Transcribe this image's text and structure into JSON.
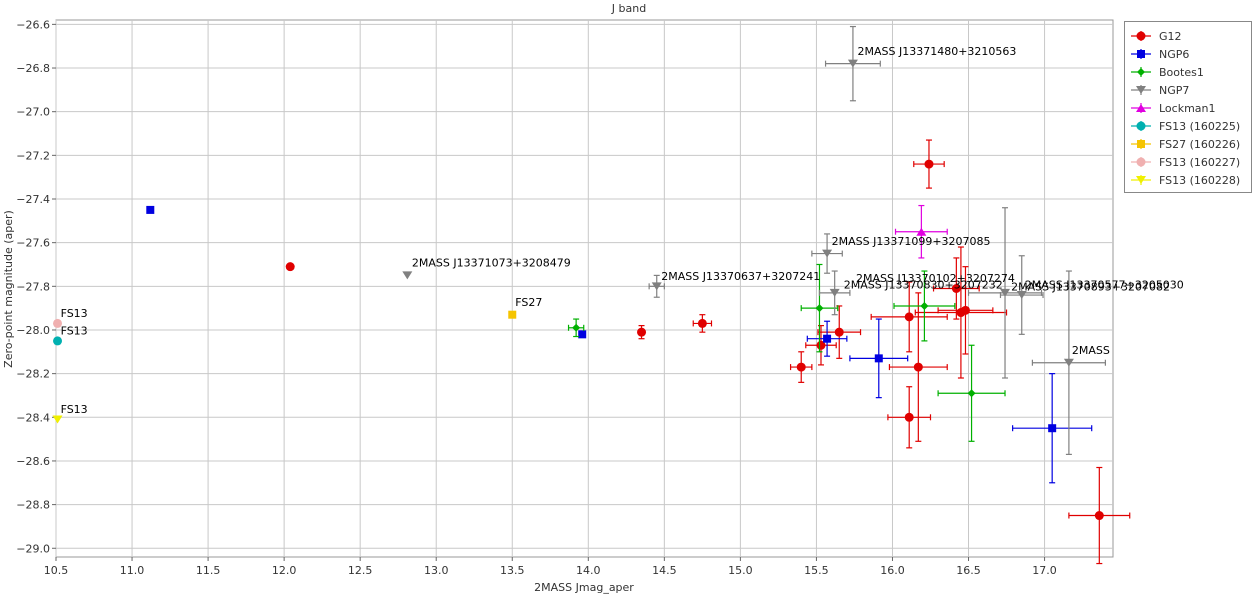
{
  "chart_data": {
    "type": "scatter",
    "title": "J band",
    "xlabel": "2MASS Jmag_aper",
    "ylabel": "Zero-point magnitude (aper)",
    "xlim": [
      10.5,
      17.45
    ],
    "ylim": [
      -29.04,
      -26.58
    ],
    "y_inverted": true,
    "grid": true,
    "legend_position": "top-right outside",
    "x_ticks": [
      10.5,
      11.0,
      11.5,
      12.0,
      12.5,
      13.0,
      13.5,
      14.0,
      14.5,
      15.0,
      15.5,
      16.0,
      16.5,
      17.0
    ],
    "x_tick_labels": [
      "10.5",
      "11.0",
      "11.5",
      "12.0",
      "12.5",
      "13.0",
      "13.5",
      "14.0",
      "14.5",
      "15.0",
      "15.5",
      "16.0",
      "16.5",
      "17.0"
    ],
    "y_ticks": [
      -26.6,
      -26.8,
      -27.0,
      -27.2,
      -27.4,
      -27.6,
      -27.8,
      -28.0,
      -28.2,
      -28.4,
      -28.6,
      -28.8,
      -29.0
    ],
    "y_tick_labels": [
      "−26.6",
      "−26.8",
      "−27.0",
      "−27.2",
      "−27.4",
      "−27.6",
      "−27.8",
      "−28.0",
      "−28.2",
      "−28.4",
      "−28.6",
      "−28.8",
      "−29.0"
    ],
    "series": [
      {
        "name": "G12",
        "color": "#e00000",
        "marker": "circle",
        "points": [
          {
            "x": 12.04,
            "y": -27.71
          },
          {
            "x": 14.35,
            "y": -28.01,
            "yerr": 0.03
          },
          {
            "x": 14.75,
            "y": -27.97,
            "xerr": 0.06,
            "yerr": 0.04
          },
          {
            "x": 15.4,
            "y": -28.17,
            "xerr": 0.07,
            "yerr": 0.07
          },
          {
            "x": 15.53,
            "y": -28.07,
            "xerr": 0.1,
            "yerr": 0.09
          },
          {
            "x": 15.65,
            "y": -28.01,
            "xerr": 0.14,
            "yerr": 0.12
          },
          {
            "x": 16.11,
            "y": -27.94,
            "xerr": 0.25,
            "yerr": 0.16
          },
          {
            "x": 16.11,
            "y": -28.4,
            "xerr": 0.14,
            "yerr": 0.14
          },
          {
            "x": 16.17,
            "y": -28.17,
            "xerr": 0.19,
            "yerr": 0.34
          },
          {
            "x": 16.24,
            "y": -27.24,
            "xerr": 0.1,
            "yerr": 0.11
          },
          {
            "x": 16.42,
            "y": -27.81,
            "xerr": 0.15,
            "yerr": 0.14
          },
          {
            "x": 16.45,
            "y": -27.92,
            "xerr": 0.3,
            "yerr": 0.3
          },
          {
            "x": 16.48,
            "y": -27.91,
            "xerr": 0.18,
            "yerr": 0.2
          },
          {
            "x": 17.36,
            "y": -28.85,
            "xerr": 0.2,
            "yerr": 0.22
          }
        ]
      },
      {
        "name": "NGP6",
        "color": "#0000e0",
        "marker": "square",
        "points": [
          {
            "x": 11.12,
            "y": -27.45
          },
          {
            "x": 13.96,
            "y": -28.02
          },
          {
            "x": 15.57,
            "y": -28.04,
            "xerr": 0.13,
            "yerr": 0.08
          },
          {
            "x": 15.91,
            "y": -28.13,
            "xerr": 0.19,
            "yerr": 0.18
          },
          {
            "x": 17.05,
            "y": -28.45,
            "xerr": 0.26,
            "yerr": 0.25
          }
        ]
      },
      {
        "name": "Bootes1",
        "color": "#00b000",
        "marker": "diamond",
        "points": [
          {
            "x": 13.92,
            "y": -27.99,
            "xerr": 0.05,
            "yerr": 0.04
          },
          {
            "x": 15.52,
            "y": -27.9,
            "xerr": 0.12,
            "yerr": 0.2
          },
          {
            "x": 16.21,
            "y": -27.89,
            "xerr": 0.2,
            "yerr": 0.16
          },
          {
            "x": 16.52,
            "y": -28.29,
            "xerr": 0.22,
            "yerr": 0.22
          }
        ]
      },
      {
        "name": "NGP7",
        "color": "#808080",
        "marker": "triangle-down",
        "points": [
          {
            "x": 12.81,
            "y": -27.75
          },
          {
            "x": 14.45,
            "y": -27.8,
            "xerr": 0.05,
            "yerr": 0.05
          },
          {
            "x": 15.57,
            "y": -27.65,
            "xerr": 0.1,
            "yerr": 0.09
          },
          {
            "x": 15.62,
            "y": -27.83,
            "xerr": 0.1,
            "yerr": 0.1
          },
          {
            "x": 15.74,
            "y": -26.78,
            "xerr": 0.18,
            "yerr": 0.17
          },
          {
            "x": 16.74,
            "y": -27.83,
            "xerr": 0.24,
            "yerr": 0.39
          },
          {
            "x": 16.85,
            "y": -27.84,
            "xerr": 0.14,
            "yerr": 0.18
          },
          {
            "x": 17.16,
            "y": -28.15,
            "xerr": 0.24,
            "yerr": 0.42
          }
        ]
      },
      {
        "name": "Lockman1",
        "color": "#e000e0",
        "marker": "triangle-up",
        "points": [
          {
            "x": 16.19,
            "y": -27.55,
            "xerr": 0.17,
            "yerr": 0.12
          }
        ]
      },
      {
        "name": "FS13 (160225)",
        "color": "#00b0b0",
        "marker": "circle",
        "points": [
          {
            "x": 10.51,
            "y": -28.05
          }
        ]
      },
      {
        "name": "FS27 (160226)",
        "color": "#f5c400",
        "marker": "square",
        "points": [
          {
            "x": 13.5,
            "y": -27.93
          }
        ]
      },
      {
        "name": "FS13 (160227)",
        "color": "#f0b0b0",
        "marker": "circle",
        "points": [
          {
            "x": 10.51,
            "y": -27.97
          }
        ]
      },
      {
        "name": "FS13 (160228)",
        "color": "#f0f000",
        "marker": "triangle-down",
        "points": [
          {
            "x": 10.51,
            "y": -28.41
          }
        ]
      }
    ],
    "annotations": [
      {
        "text": "2MASS J13371480+3210563",
        "x": 15.77,
        "y": -26.74
      },
      {
        "text": "2MASS J13371073+3208479",
        "x": 12.84,
        "y": -27.71
      },
      {
        "text": "2MASS J13370637+3207241",
        "x": 14.48,
        "y": -27.77
      },
      {
        "text": "2MASS J13371099+3207085",
        "x": 15.6,
        "y": -27.61
      },
      {
        "text": "2MASS J13370102+3207274",
        "x": 15.76,
        "y": -27.78
      },
      {
        "text": "2MASS J13370830+3207232",
        "x": 15.68,
        "y": -27.81
      },
      {
        "text": "2MASS J13370577+3205030",
        "x": 16.87,
        "y": -27.81
      },
      {
        "text": "2MASS J13370893+3207082",
        "x": 16.78,
        "y": -27.82
      },
      {
        "text": "2MASS",
        "x": 17.18,
        "y": -28.11
      },
      {
        "text": "FS13",
        "x": 10.53,
        "y": -27.94
      },
      {
        "text": "FS13",
        "x": 10.53,
        "y": -28.02
      },
      {
        "text": "FS27",
        "x": 13.52,
        "y": -27.89
      },
      {
        "text": "FS13",
        "x": 10.53,
        "y": -28.38
      }
    ]
  }
}
